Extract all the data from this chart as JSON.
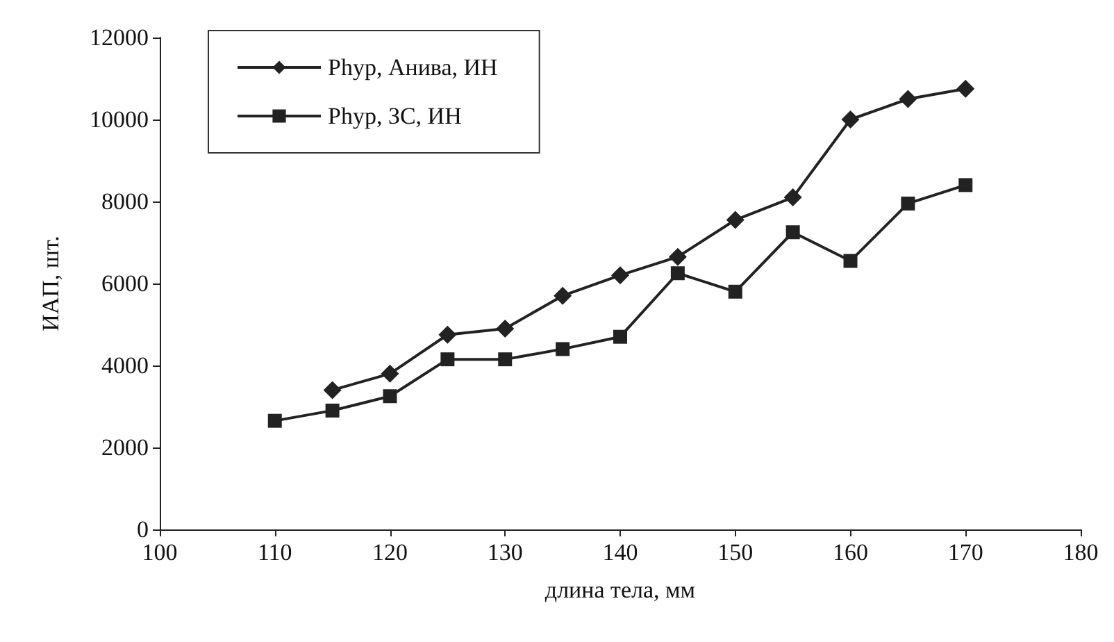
{
  "chart_data": {
    "type": "line",
    "xlabel": "длина тела, мм",
    "ylabel": "ИАП, шт.",
    "x": [
      110,
      115,
      120,
      125,
      130,
      135,
      140,
      145,
      150,
      155,
      160,
      165,
      170
    ],
    "series": [
      {
        "name": "Phyp, Анива, ИН",
        "color": "#222222",
        "marker": "diamond",
        "values": [
          null,
          3400,
          3800,
          4750,
          4900,
          5700,
          6200,
          6650,
          7550,
          8100,
          10000,
          10500,
          10750
        ]
      },
      {
        "name": "Phyp, ЗС, ИН",
        "color": "#222222",
        "marker": "square",
        "values": [
          2650,
          2900,
          3250,
          4150,
          4150,
          4400,
          4700,
          6250,
          5800,
          7250,
          6550,
          7950,
          8400
        ]
      }
    ],
    "xlim": [
      100,
      180
    ],
    "xticks": [
      100,
      110,
      120,
      130,
      140,
      150,
      160,
      170,
      180
    ],
    "ylim": [
      0,
      12000
    ],
    "yticks": [
      0,
      2000,
      4000,
      6000,
      8000,
      10000,
      12000
    ],
    "grid": false,
    "legend": "top left",
    "line_style": "solid"
  }
}
